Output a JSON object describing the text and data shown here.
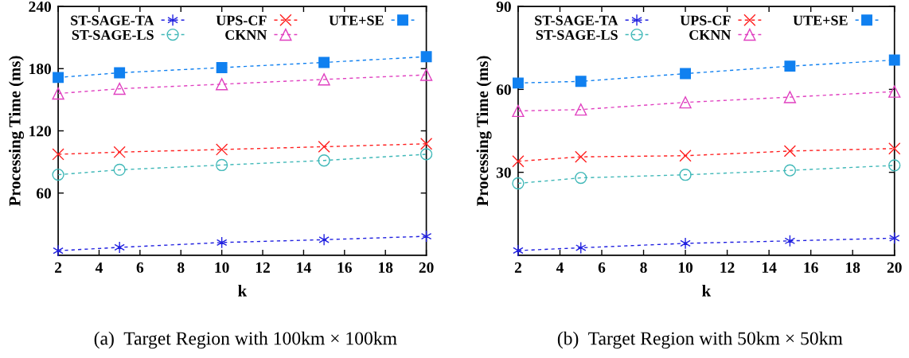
{
  "chart_data": [
    {
      "type": "line",
      "xlabel": "k",
      "ylabel": "Processing Time (ms)",
      "annotations": [
        "(a)  Target Region with 100km × 100km"
      ],
      "x": [
        2,
        5,
        10,
        15,
        20
      ],
      "xlim": [
        2,
        20
      ],
      "xticks": [
        2,
        4,
        6,
        8,
        10,
        12,
        14,
        16,
        18,
        20
      ],
      "ylim": [
        0,
        240
      ],
      "yticks": [
        60,
        120,
        180,
        240
      ],
      "legend": "top",
      "line_style": "dashed",
      "grid": false,
      "series": [
        {
          "name": "ST-SAGE-TA",
          "color": "#2020e0",
          "marker": "cross",
          "values": [
            4.4,
            7.6,
            12.3,
            15,
            18.3
          ]
        },
        {
          "name": "ST-SAGE-LS",
          "color": "#40b8b8",
          "marker": "circle",
          "values": [
            77.7,
            82.4,
            87,
            91.4,
            97.4
          ]
        },
        {
          "name": "UPS-CF",
          "color": "#ff2020",
          "marker": "cross",
          "values": [
            97.4,
            99.5,
            102,
            104.7,
            107.5
          ]
        },
        {
          "name": "CKNN",
          "color": "#e040c0",
          "marker": "triangle",
          "values": [
            156,
            160.6,
            165,
            169.6,
            174
          ]
        },
        {
          "name": "UTE+SE",
          "color": "#1080f0",
          "marker": "square",
          "values": [
            171.5,
            176,
            181,
            186,
            191.5
          ]
        }
      ]
    },
    {
      "type": "line",
      "xlabel": "k",
      "ylabel": "Processing Time (ms)",
      "annotations": [
        "(b)  Target Region with 50km × 50km"
      ],
      "x": [
        2,
        5,
        10,
        15,
        20
      ],
      "xlim": [
        2,
        20
      ],
      "xticks": [
        2,
        4,
        6,
        8,
        10,
        12,
        14,
        16,
        18,
        20
      ],
      "ylim": [
        0,
        90
      ],
      "yticks": [
        30,
        60,
        90
      ],
      "legend": "top",
      "line_style": "dashed",
      "grid": false,
      "series": [
        {
          "name": "ST-SAGE-TA",
          "color": "#2020e0",
          "marker": "cross",
          "values": [
            1.7,
            2.7,
            4.3,
            5.2,
            6.2
          ]
        },
        {
          "name": "ST-SAGE-LS",
          "color": "#40b8b8",
          "marker": "circle",
          "values": [
            26.0,
            28.0,
            29.1,
            30.7,
            32.5
          ]
        },
        {
          "name": "UPS-CF",
          "color": "#ff2020",
          "marker": "cross",
          "values": [
            34,
            35.6,
            36.0,
            37.7,
            38.6
          ]
        },
        {
          "name": "CKNN",
          "color": "#e040c0",
          "marker": "triangle",
          "values": [
            52.2,
            52.7,
            55.3,
            57.2,
            59.2
          ]
        },
        {
          "name": "UTE+SE",
          "color": "#1080f0",
          "marker": "square",
          "values": [
            62.3,
            62.9,
            65.7,
            68.4,
            70.6
          ]
        }
      ]
    }
  ]
}
